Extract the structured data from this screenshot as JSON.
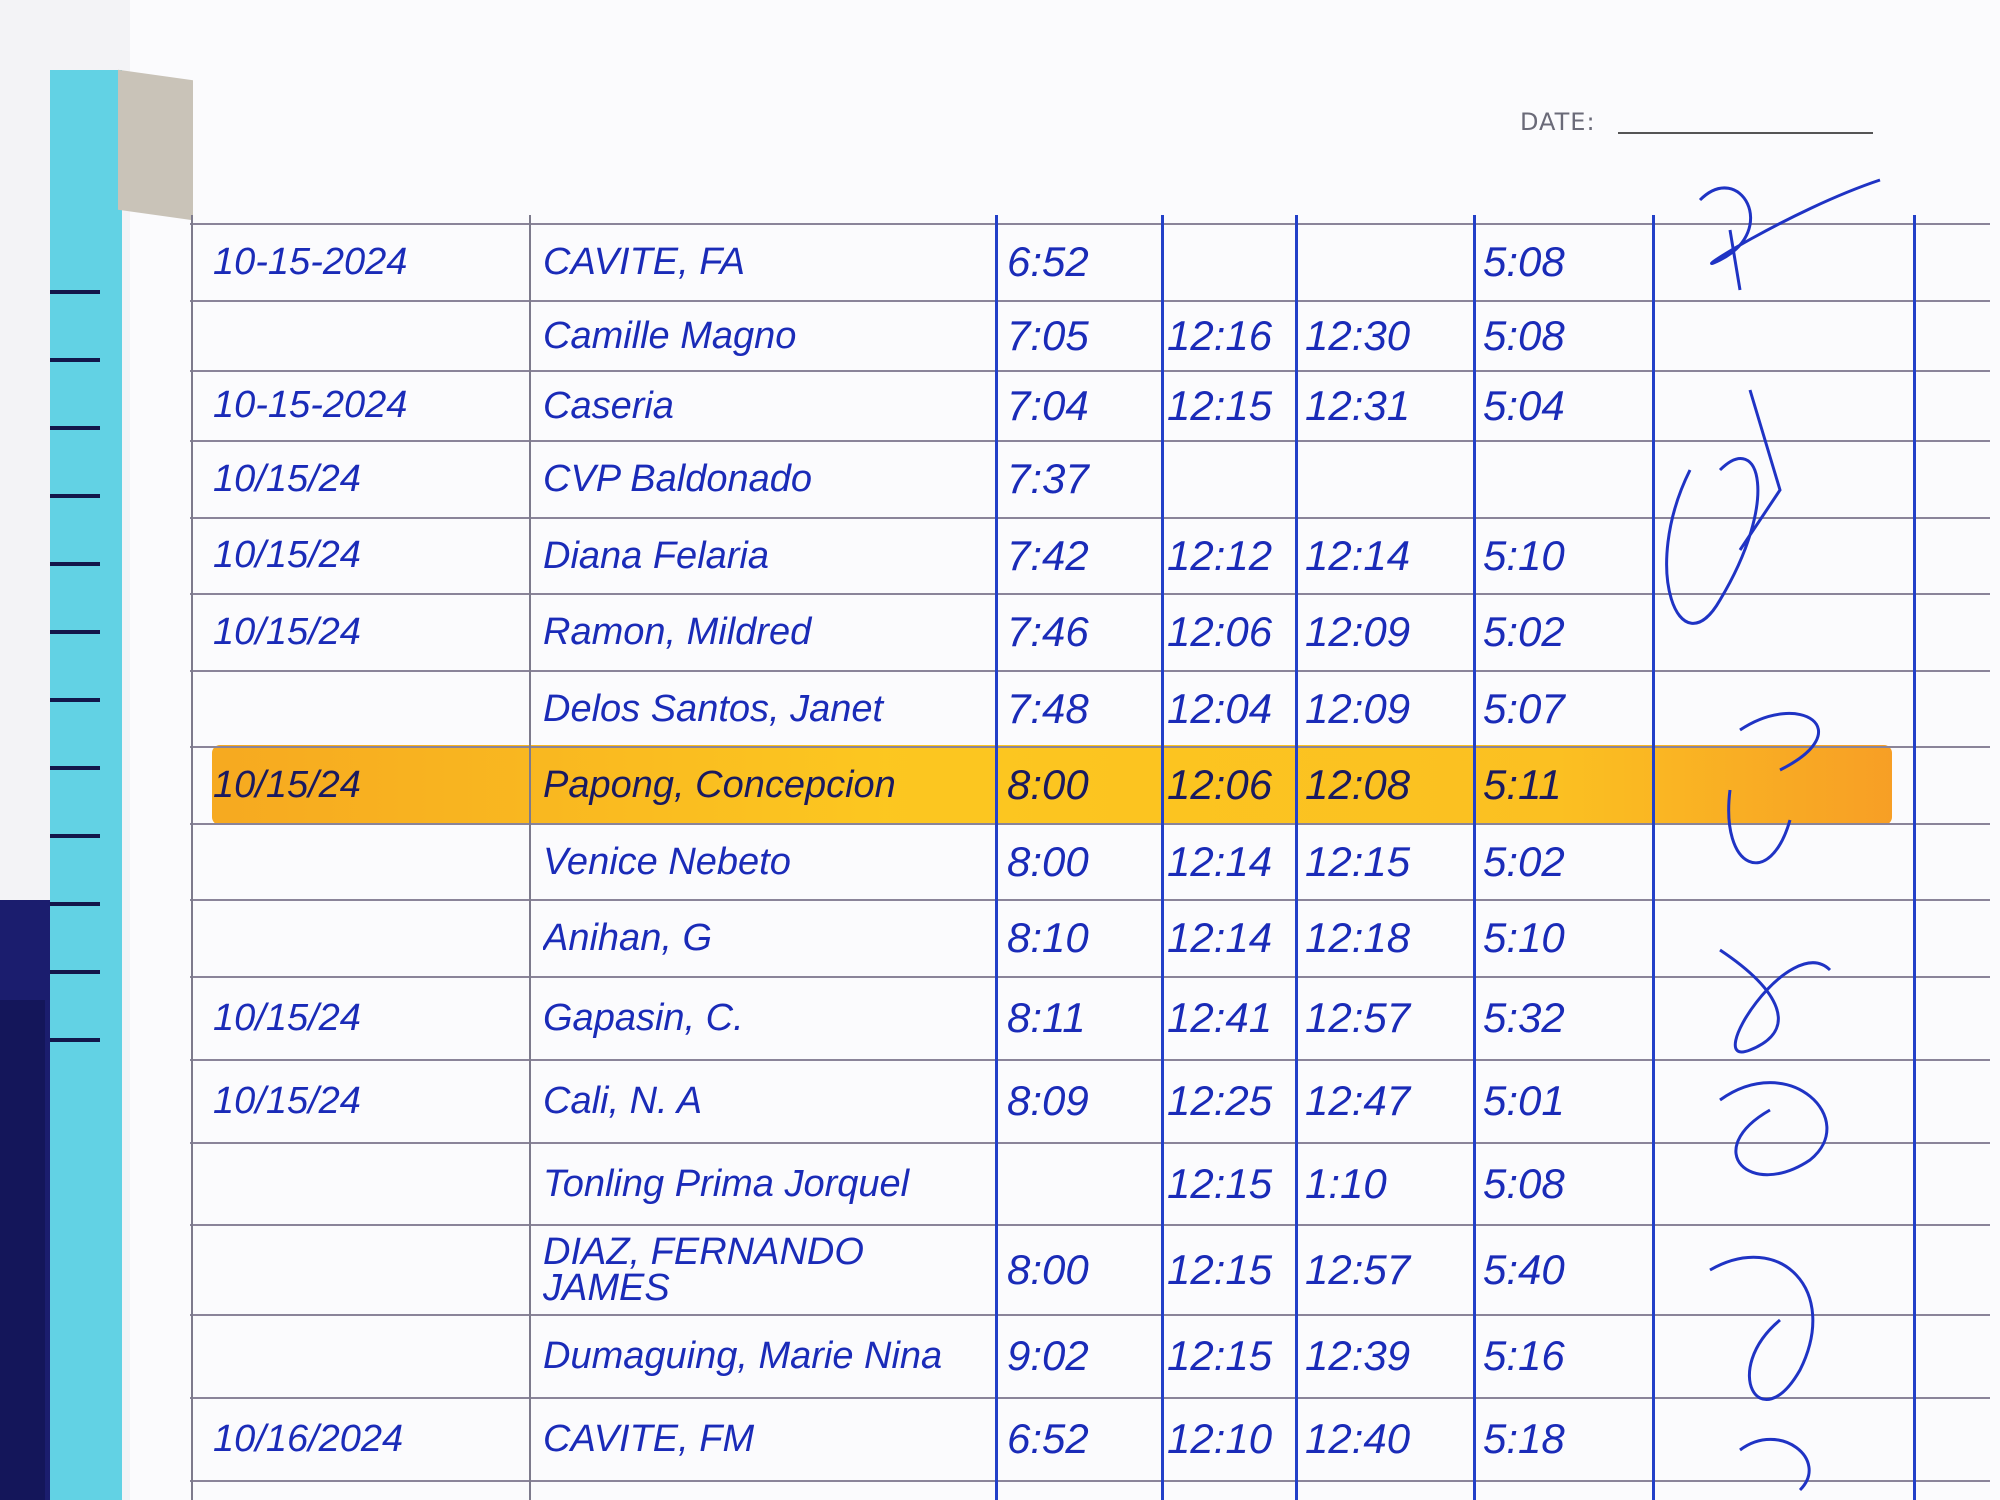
{
  "page": {
    "date_label": "DATE:",
    "date_value": ""
  },
  "log": {
    "highlight_color": "#fbbd16",
    "ink_color": "#1a2bb8",
    "rows": [
      {
        "date": "10-15-2024",
        "name": "CAVITE, FA",
        "time_in": "6:52",
        "lunch_out": "",
        "lunch_in": "",
        "time_out": "5:08",
        "highlighted": false
      },
      {
        "date": "",
        "name": "Camille Magno",
        "time_in": "7:05",
        "lunch_out": "12:16",
        "lunch_in": "12:30",
        "time_out": "5:08",
        "highlighted": false
      },
      {
        "date": "10-15-2024",
        "name": "Caseria",
        "time_in": "7:04",
        "lunch_out": "12:15",
        "lunch_in": "12:31",
        "time_out": "5:04",
        "highlighted": false
      },
      {
        "date": "10/15/24",
        "name": "CVP Baldonado",
        "time_in": "7:37",
        "lunch_out": "",
        "lunch_in": "",
        "time_out": "",
        "highlighted": false
      },
      {
        "date": "10/15/24",
        "name": "Diana Felaria",
        "time_in": "7:42",
        "lunch_out": "12:12",
        "lunch_in": "12:14",
        "time_out": "5:10",
        "highlighted": false
      },
      {
        "date": "10/15/24",
        "name": "Ramon, Mildred",
        "time_in": "7:46",
        "lunch_out": "12:06",
        "lunch_in": "12:09",
        "time_out": "5:02",
        "highlighted": false
      },
      {
        "date": "",
        "name": "Delos Santos, Janet",
        "time_in": "7:48",
        "lunch_out": "12:04",
        "lunch_in": "12:09",
        "time_out": "5:07",
        "highlighted": false
      },
      {
        "date": "10/15/24",
        "name": "Papong, Concepcion",
        "time_in": "8:00",
        "lunch_out": "12:06",
        "lunch_in": "12:08",
        "time_out": "5:11",
        "highlighted": true
      },
      {
        "date": "",
        "name": "Venice Nebeto",
        "time_in": "8:00",
        "lunch_out": "12:14",
        "lunch_in": "12:15",
        "time_out": "5:02",
        "highlighted": false
      },
      {
        "date": "",
        "name": "Anihan, G",
        "time_in": "8:10",
        "lunch_out": "12:14",
        "lunch_in": "12:18",
        "time_out": "5:10",
        "highlighted": false
      },
      {
        "date": "10/15/24",
        "name": "Gapasin, C.",
        "time_in": "8:11",
        "lunch_out": "12:41",
        "lunch_in": "12:57",
        "time_out": "5:32",
        "highlighted": false
      },
      {
        "date": "10/15/24",
        "name": "Cali, N. A",
        "time_in": "8:09",
        "lunch_out": "12:25",
        "lunch_in": "12:47",
        "time_out": "5:01",
        "highlighted": false
      },
      {
        "date": "",
        "name": "Tonling Prima Jorquel",
        "time_in": "",
        "lunch_out": "12:15",
        "lunch_in": "1:10",
        "time_out": "5:08",
        "highlighted": false
      },
      {
        "date": "",
        "name": "DIAZ, FERNANDO JAMES",
        "time_in": "8:00",
        "lunch_out": "12:15",
        "lunch_in": "12:57",
        "time_out": "5:40",
        "highlighted": false
      },
      {
        "date": "",
        "name": "Dumaguing, Marie Nina",
        "time_in": "9:02",
        "lunch_out": "12:15",
        "lunch_in": "12:39",
        "time_out": "5:16",
        "highlighted": false
      },
      {
        "date": "10/16/2024",
        "name": "CAVITE, FM",
        "time_in": "6:52",
        "lunch_out": "12:10",
        "lunch_in": "12:40",
        "time_out": "5:18",
        "highlighted": false
      }
    ]
  }
}
